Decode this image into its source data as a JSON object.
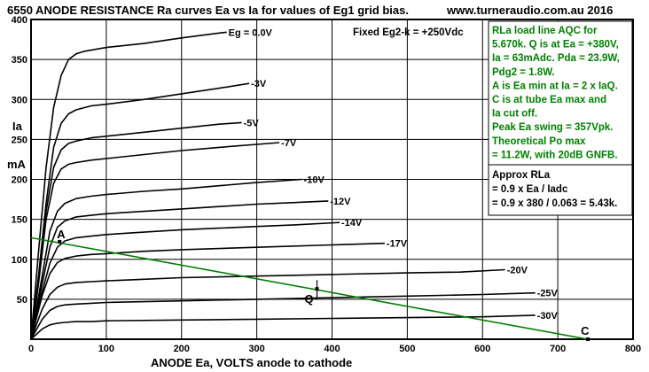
{
  "chart_data": {
    "type": "line",
    "title": "6550 ANODE RESISTANCE Ra curves Ea vs Ia for values of Eg1 grid bias.",
    "website": "www.turneraudio.com.au 2016",
    "xlabel": "ANODE Ea, VOLTS anode to cathode",
    "ylabel_lines": [
      "Ia",
      "mA"
    ],
    "xlim": [
      0,
      800
    ],
    "ylim": [
      0,
      400
    ],
    "x_ticks": [
      0,
      100,
      200,
      300,
      400,
      500,
      600,
      700,
      800
    ],
    "y_ticks": [
      50,
      100,
      150,
      200,
      250,
      300,
      350,
      400
    ],
    "grid": true,
    "fixed_screen_label": "Fixed Eg2-k = +250Vdc",
    "series": [
      {
        "name": "Eg = 0.0V",
        "points": [
          [
            0,
            0
          ],
          [
            10,
            110
          ],
          [
            20,
            215
          ],
          [
            30,
            290
          ],
          [
            40,
            330
          ],
          [
            50,
            350
          ],
          [
            60,
            357
          ],
          [
            70,
            360
          ],
          [
            100,
            365
          ],
          [
            150,
            370
          ],
          [
            200,
            377
          ],
          [
            250,
            383
          ],
          [
            260,
            384
          ]
        ]
      },
      {
        "name": "-3V",
        "points": [
          [
            0,
            0
          ],
          [
            10,
            80
          ],
          [
            20,
            170
          ],
          [
            30,
            240
          ],
          [
            40,
            270
          ],
          [
            50,
            282
          ],
          [
            60,
            287
          ],
          [
            80,
            292
          ],
          [
            100,
            294
          ],
          [
            150,
            300
          ],
          [
            200,
            307
          ],
          [
            250,
            314
          ],
          [
            290,
            320
          ]
        ]
      },
      {
        "name": "-5V",
        "points": [
          [
            0,
            0
          ],
          [
            10,
            75
          ],
          [
            20,
            160
          ],
          [
            30,
            215
          ],
          [
            40,
            237
          ],
          [
            50,
            245
          ],
          [
            60,
            248
          ],
          [
            80,
            252
          ],
          [
            100,
            254
          ],
          [
            150,
            259
          ],
          [
            200,
            264
          ],
          [
            250,
            269
          ],
          [
            280,
            271
          ]
        ]
      },
      {
        "name": "-7V",
        "points": [
          [
            0,
            0
          ],
          [
            10,
            70
          ],
          [
            20,
            150
          ],
          [
            30,
            195
          ],
          [
            40,
            213
          ],
          [
            50,
            219
          ],
          [
            60,
            221
          ],
          [
            80,
            224
          ],
          [
            100,
            226
          ],
          [
            150,
            231
          ],
          [
            200,
            236
          ],
          [
            250,
            240
          ],
          [
            330,
            246
          ]
        ]
      },
      {
        "name": "-10V",
        "points": [
          [
            0,
            0
          ],
          [
            15,
            80
          ],
          [
            25,
            135
          ],
          [
            35,
            160
          ],
          [
            45,
            170
          ],
          [
            60,
            176
          ],
          [
            80,
            179
          ],
          [
            100,
            181
          ],
          [
            150,
            185
          ],
          [
            200,
            188
          ],
          [
            250,
            192
          ],
          [
            300,
            196
          ],
          [
            360,
            200
          ]
        ]
      },
      {
        "name": "-12V",
        "points": [
          [
            0,
            0
          ],
          [
            15,
            70
          ],
          [
            25,
            115
          ],
          [
            35,
            140
          ],
          [
            45,
            148
          ],
          [
            60,
            153
          ],
          [
            80,
            155
          ],
          [
            100,
            157
          ],
          [
            150,
            160
          ],
          [
            200,
            163
          ],
          [
            250,
            166
          ],
          [
            300,
            169
          ],
          [
            350,
            171
          ],
          [
            395,
            173
          ]
        ]
      },
      {
        "name": "-14V",
        "points": [
          [
            0,
            0
          ],
          [
            15,
            60
          ],
          [
            25,
            95
          ],
          [
            35,
            115
          ],
          [
            45,
            123
          ],
          [
            60,
            127
          ],
          [
            80,
            129
          ],
          [
            100,
            131
          ],
          [
            150,
            134
          ],
          [
            200,
            137
          ],
          [
            250,
            139
          ],
          [
            300,
            141
          ],
          [
            350,
            143
          ],
          [
            410,
            146
          ]
        ]
      },
      {
        "name": "-17V",
        "points": [
          [
            0,
            0
          ],
          [
            15,
            55
          ],
          [
            25,
            82
          ],
          [
            35,
            96
          ],
          [
            45,
            101
          ],
          [
            60,
            104
          ],
          [
            80,
            106
          ],
          [
            100,
            107
          ],
          [
            150,
            110
          ],
          [
            200,
            112
          ],
          [
            300,
            115
          ],
          [
            400,
            118
          ],
          [
            470,
            120
          ]
        ]
      },
      {
        "name": "-20V",
        "points": [
          [
            0,
            0
          ],
          [
            15,
            38
          ],
          [
            25,
            56
          ],
          [
            35,
            65
          ],
          [
            45,
            69
          ],
          [
            60,
            71
          ],
          [
            80,
            72
          ],
          [
            100,
            73
          ],
          [
            150,
            75
          ],
          [
            200,
            77
          ],
          [
            300,
            79
          ],
          [
            400,
            81
          ],
          [
            500,
            83
          ],
          [
            570,
            84
          ],
          [
            630,
            87
          ]
        ]
      },
      {
        "name": "-25V",
        "points": [
          [
            0,
            0
          ],
          [
            15,
            25
          ],
          [
            25,
            36
          ],
          [
            35,
            41
          ],
          [
            45,
            43
          ],
          [
            60,
            44
          ],
          [
            80,
            45
          ],
          [
            100,
            46
          ],
          [
            200,
            48
          ],
          [
            300,
            50
          ],
          [
            400,
            52
          ],
          [
            500,
            54
          ],
          [
            600,
            56
          ],
          [
            670,
            58
          ]
        ]
      },
      {
        "name": "-30V",
        "points": [
          [
            0,
            0
          ],
          [
            15,
            13
          ],
          [
            25,
            18
          ],
          [
            35,
            20
          ],
          [
            45,
            21
          ],
          [
            60,
            22
          ],
          [
            80,
            22
          ],
          [
            100,
            23
          ],
          [
            200,
            24
          ],
          [
            300,
            25
          ],
          [
            400,
            26
          ],
          [
            500,
            27
          ],
          [
            600,
            28
          ],
          [
            670,
            30
          ]
        ]
      }
    ],
    "load_line": {
      "color": "#008000",
      "from": [
        0,
        127
      ],
      "to": [
        740,
        0
      ]
    },
    "markers": [
      {
        "label": "A",
        "x": 38,
        "y": 122
      },
      {
        "label": "Q",
        "x": 380,
        "y": 63
      },
      {
        "label": "C",
        "x": 740,
        "y": 0
      }
    ],
    "colors": {
      "curves": "#000000",
      "load_line": "#008000",
      "grid": "#000000"
    }
  },
  "notes_main": [
    "RLa load line AQC for",
    "5.670k. Q is at Ea = +380V,",
    "Ia = 63mAdc. Pda = 23.9W,",
    "Pdg2 = 1.8W.",
    "A is Ea min at Ia = 2 x IaQ.",
    "C is at tube Ea max and",
    "Ia cut off.",
    "Peak Ea swing = 357Vpk.",
    "Theoretical Po max",
    "= 11.2W, with 20dB GNFB."
  ],
  "notes_rla": [
    "Approx RLa",
    "= 0.9 x Ea / Iadc",
    "= 0.9 x 380 / 0.063 = 5.43k."
  ]
}
